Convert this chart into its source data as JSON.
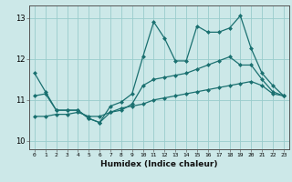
{
  "xlabel": "Humidex (Indice chaleur)",
  "bg_color": "#cce8e8",
  "grid_color": "#99cccc",
  "line_color": "#1a7070",
  "xlim": [
    -0.5,
    23.5
  ],
  "ylim": [
    9.8,
    13.3
  ],
  "yticks": [
    10,
    11,
    12,
    13
  ],
  "xticks": [
    0,
    1,
    2,
    3,
    4,
    5,
    6,
    7,
    8,
    9,
    10,
    11,
    12,
    13,
    14,
    15,
    16,
    17,
    18,
    19,
    20,
    21,
    22,
    23
  ],
  "line1_x": [
    0,
    1,
    2,
    3,
    4,
    5,
    6,
    7,
    8,
    9,
    10,
    11,
    12,
    13,
    14,
    15,
    16,
    17,
    18,
    19,
    20,
    21,
    22,
    23
  ],
  "line1_y": [
    11.65,
    11.2,
    10.75,
    10.75,
    10.75,
    10.55,
    10.45,
    10.85,
    10.95,
    11.15,
    12.05,
    12.9,
    12.5,
    11.95,
    11.95,
    12.8,
    12.65,
    12.65,
    12.75,
    13.05,
    12.25,
    11.65,
    11.35,
    11.1
  ],
  "line2_x": [
    0,
    1,
    2,
    3,
    4,
    5,
    6,
    7,
    8,
    9,
    10,
    11,
    12,
    13,
    14,
    15,
    16,
    17,
    18,
    19,
    20,
    21,
    22,
    23
  ],
  "line2_y": [
    11.1,
    11.15,
    10.75,
    10.75,
    10.75,
    10.55,
    10.45,
    10.7,
    10.75,
    10.9,
    11.35,
    11.5,
    11.55,
    11.6,
    11.65,
    11.75,
    11.85,
    11.95,
    12.05,
    11.85,
    11.85,
    11.5,
    11.2,
    11.1
  ],
  "line3_x": [
    0,
    1,
    2,
    3,
    4,
    5,
    6,
    7,
    8,
    9,
    10,
    11,
    12,
    13,
    14,
    15,
    16,
    17,
    18,
    19,
    20,
    21,
    22,
    23
  ],
  "line3_y": [
    10.6,
    10.6,
    10.65,
    10.65,
    10.7,
    10.6,
    10.6,
    10.7,
    10.8,
    10.85,
    10.9,
    11.0,
    11.05,
    11.1,
    11.15,
    11.2,
    11.25,
    11.3,
    11.35,
    11.4,
    11.45,
    11.35,
    11.15,
    11.1
  ],
  "marker": "D",
  "markersize": 2.5,
  "linewidth": 0.9
}
